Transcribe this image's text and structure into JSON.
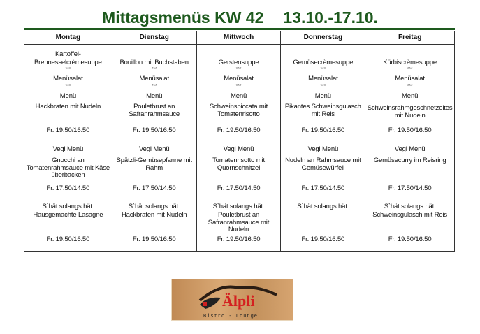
{
  "title": {
    "main": "Mittagsmenüs KW 42",
    "dates": "13.10.-17.10."
  },
  "days": [
    {
      "name": "Montag",
      "soup": [
        "Kartoffel-",
        "Brennesselcrèmesuppe"
      ],
      "salad": "Menüsalat",
      "menu_label": "Menü",
      "menu": [
        "Hackbraten mit Nudeln"
      ],
      "menu_price": "Fr. 19.50/16.50",
      "vegi_label": "Vegi Menü",
      "vegi": [
        "Gnocchi an",
        "Tomatenrahmsauce mit Käse",
        "überbacken"
      ],
      "vegi_price": "Fr. 17.50/14.50",
      "special_label": "S`hät solangs hät:",
      "special": [
        "Hausgemachte Lasagne"
      ],
      "special_price": "Fr. 19.50/16.50"
    },
    {
      "name": "Dienstag",
      "soup": [
        "Bouillon mit Buchstaben"
      ],
      "salad": "Menüsalat",
      "menu_label": "Menü",
      "menu": [
        "Pouletbrust an",
        "Safranrahmsauce"
      ],
      "menu_price": "Fr. 19.50/16.50",
      "vegi_label": "Vegi Menü",
      "vegi": [
        "Spätzli-Gemüsepfanne mit",
        "Rahm"
      ],
      "vegi_price": "Fr. 17.50/14.50",
      "special_label": "S`hät solangs hät:",
      "special": [
        "Hackbraten mit Nudeln"
      ],
      "special_price": "Fr. 19.50/16.50"
    },
    {
      "name": "Mittwoch",
      "soup": [
        "Gerstensuppe"
      ],
      "salad": "Menüsalat",
      "menu_label": "Menü",
      "menu": [
        "Schweinspiccata mit",
        "Tomatenrisotto"
      ],
      "menu_price": "Fr. 19.50/16.50",
      "vegi_label": "Vegi Menü",
      "vegi": [
        "Tomatenrisotto mit",
        "Quornschnitzel"
      ],
      "vegi_price": "Fr. 17.50/14.50",
      "special_label": "S`hät solangs hät:",
      "special": [
        "Pouletbrust an",
        "Safranrahmsauce mit",
        "Nudeln"
      ],
      "special_price": "Fr. 19.50/16.50"
    },
    {
      "name": "Donnerstag",
      "soup": [
        "Gemüsecrèmesuppe"
      ],
      "salad": "Menüsalat",
      "menu_label": "Menü",
      "menu": [
        "Pikantes Schweinsgulasch",
        "mit Reis"
      ],
      "menu_price": "Fr. 19.50/16.50",
      "vegi_label": "Vegi Menü",
      "vegi": [
        "Nudeln an Rahmsauce mit",
        "Gemüsewürfeli"
      ],
      "vegi_price": "Fr. 17.50/14.50",
      "special_label": "S`hät solangs hät:",
      "special": [],
      "special_price": "Fr. 19.50/16.50"
    },
    {
      "name": "Freitag",
      "soup": [
        "Kürbiscrèmesuppe"
      ],
      "salad": "Menüsalat",
      "menu_label": "Menü",
      "menu": [
        "",
        "Schweinsrahmgeschnetzeltes",
        "mit Nudeln"
      ],
      "menu_price": "Fr. 19.50/16.50",
      "vegi_label": "Vegi Menü",
      "vegi": [
        "Gemüsecurry im Reisring"
      ],
      "vegi_price": "Fr. 17.50/14.50",
      "special_label": "S`hät solangs hät:",
      "special": [
        "Schweinsgulasch mit Reis"
      ],
      "special_price": "Fr. 19.50/16.50"
    }
  ],
  "separator": "***",
  "logo": {
    "name": "Älpli",
    "tagline": "Bistro - Lounge"
  }
}
